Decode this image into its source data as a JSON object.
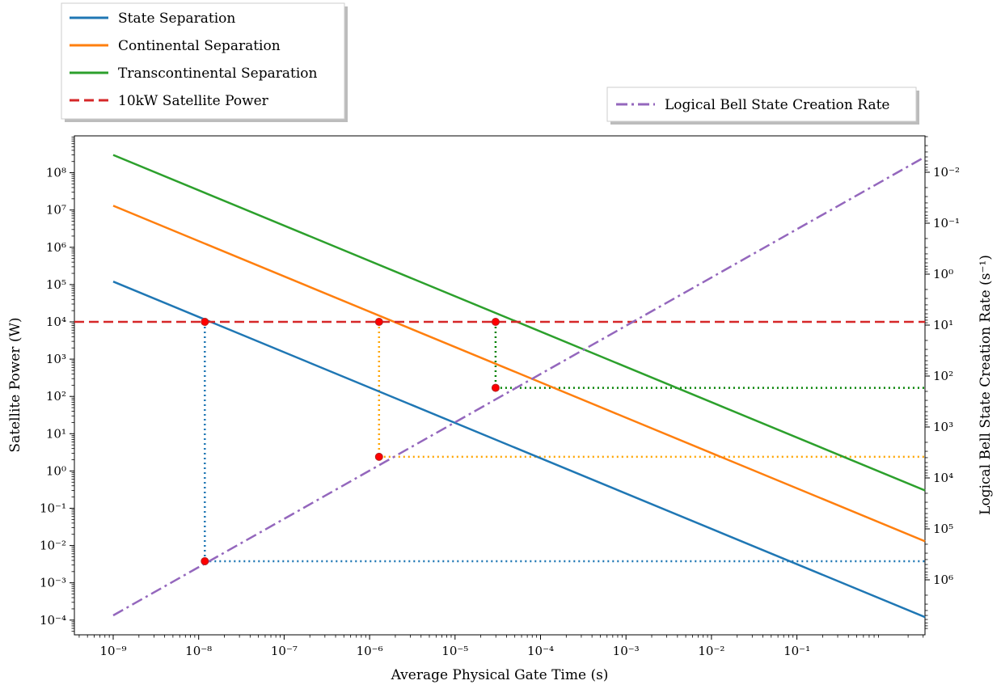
{
  "chart_data": {
    "type": "line",
    "title": "",
    "xlabel": "Average Physical Gate Time (s)",
    "ylabel": "Satellite Power (W)",
    "y2label": "Logical Bell State Creation Rate (s⁻¹)",
    "x_scale": "log",
    "y_scale": "log",
    "y2_scale": "log",
    "xlim": [
      3.33e-10,
      30
    ],
    "ylim": [
      2e-05,
      3000000000
    ],
    "x_ticks": [
      "10⁻⁹",
      "10⁻⁸",
      "10⁻⁷",
      "10⁻⁶",
      "10⁻⁵",
      "10⁻⁴",
      "10⁻³",
      "10⁻²",
      "10⁻¹"
    ],
    "y_ticks": [
      "10⁻⁴",
      "10⁻³",
      "10⁻²",
      "10⁻¹",
      "10⁰",
      "10¹",
      "10²",
      "10³",
      "10⁴",
      "10⁵",
      "10⁶",
      "10⁷",
      "10⁸"
    ],
    "y2_ticks": [
      "10⁻²",
      "10⁻¹",
      "10⁰",
      "10¹",
      "10²",
      "10³",
      "10⁴",
      "10⁵",
      "10⁶"
    ],
    "grid": false,
    "series": [
      {
        "name": "State Separation",
        "axis": "left",
        "style": "solid",
        "color": "#1f77b4",
        "x": [
          1e-09,
          10
        ],
        "y": [
          120000,
          0.00012
        ]
      },
      {
        "name": "Continental Separation",
        "axis": "left",
        "style": "solid",
        "color": "#ff7f0e",
        "x": [
          1e-09,
          10
        ],
        "y": [
          13000000,
          0.013
        ]
      },
      {
        "name": "Transcontinental Separation",
        "axis": "left",
        "style": "solid",
        "color": "#2ca02c",
        "x": [
          1e-09,
          10
        ],
        "y": [
          300000000,
          0.3
        ]
      },
      {
        "name": "10kW Satellite Power",
        "axis": "left",
        "style": "dashed",
        "color": "#d62728",
        "x": [
          3.33e-10,
          30
        ],
        "y": [
          10000,
          10000
        ]
      },
      {
        "name": "Logical Bell State Creation Rate",
        "axis": "right",
        "style": "dashdot",
        "color": "#9467bd",
        "x": [
          1e-09,
          10
        ],
        "y": [
          5000000,
          0.005
        ]
      }
    ],
    "markers": [
      {
        "color": "#ff0000",
        "x": 1.18e-08,
        "y": 10000
      },
      {
        "color": "#ff0000",
        "x": 1.18e-08,
        "y": 0.0038
      },
      {
        "color": "#ff0000",
        "x": 1.29e-06,
        "y": 10000
      },
      {
        "color": "#ff0000",
        "x": 1.29e-06,
        "y": 2.4
      },
      {
        "color": "#ff0000",
        "x": 2.98e-05,
        "y": 10000
      },
      {
        "color": "#ff0000",
        "x": 2.98e-05,
        "y": 170
      }
    ],
    "guide_lines": [
      {
        "color": "#1f77b4",
        "x": 1.18e-08,
        "y_top": 10000,
        "y_bottom": 0.0038
      },
      {
        "color": "#ffa500",
        "x": 1.29e-06,
        "y_top": 10000,
        "y_bottom": 2.4
      },
      {
        "color": "#008000",
        "x": 2.98e-05,
        "y_top": 10000,
        "y_bottom": 170
      }
    ],
    "legends": [
      {
        "placement": "upper-left-outside",
        "entries": [
          "State Separation",
          "Continental Separation",
          "Transcontinental Separation",
          "10kW Satellite Power"
        ]
      },
      {
        "placement": "upper-right-outside",
        "entries": [
          "Logical Bell State Creation Rate"
        ]
      }
    ]
  }
}
